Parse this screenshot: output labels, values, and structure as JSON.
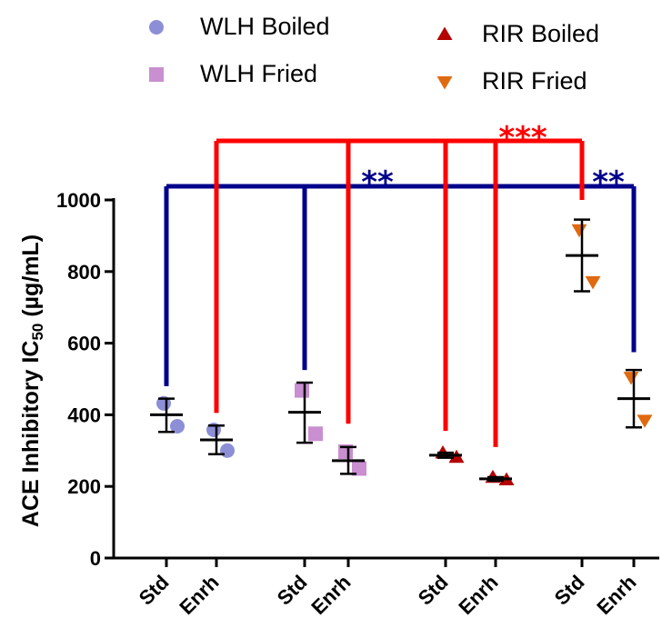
{
  "chart_data": {
    "type": "scatter",
    "ylabel_main": "ACE Inhibitory IC",
    "ylabel_sub": "50",
    "ylabel_unit": " (µg/mL)",
    "ylim": [
      0,
      1000
    ],
    "yticks": [
      0,
      200,
      400,
      600,
      800,
      1000
    ],
    "categories": [
      "Std",
      "Enrh",
      "Std",
      "Enrh",
      "Std",
      "Enrh",
      "Std",
      "Enrh"
    ],
    "legend_placement": "top",
    "series": [
      {
        "name": "WLH Boiled",
        "marker": "circle",
        "color": "#8C8FD6",
        "groups": [
          {
            "category_index": 0,
            "points": [
              432,
              368
            ],
            "mean": 400,
            "err_low": 352,
            "err_high": 445
          },
          {
            "category_index": 1,
            "points": [
              358,
              300
            ],
            "mean": 330,
            "err_low": 290,
            "err_high": 370
          }
        ]
      },
      {
        "name": "WLH Fried",
        "marker": "square",
        "color": "#C98FD0",
        "groups": [
          {
            "category_index": 2,
            "points": [
              468,
              347
            ],
            "mean": 407,
            "err_low": 322,
            "err_high": 490
          },
          {
            "category_index": 3,
            "points": [
              297,
              250
            ],
            "mean": 272,
            "err_low": 235,
            "err_high": 310
          }
        ]
      },
      {
        "name": "RIR Boiled",
        "marker": "triangle-up",
        "color": "#B30000",
        "groups": [
          {
            "category_index": 4,
            "points": [
              293,
              281
            ],
            "mean": 287,
            "err_low": 280,
            "err_high": 294
          },
          {
            "category_index": 5,
            "points": [
              225,
              218
            ],
            "mean": 221,
            "err_low": 216,
            "err_high": 226
          }
        ]
      },
      {
        "name": "RIR Fried",
        "marker": "triangle-down",
        "color": "#E06A10",
        "groups": [
          {
            "category_index": 6,
            "points": [
              917,
              772
            ],
            "mean": 845,
            "err_low": 745,
            "err_high": 945
          },
          {
            "category_index": 7,
            "points": [
              505,
              385
            ],
            "mean": 445,
            "err_low": 365,
            "err_high": 525
          }
        ]
      }
    ],
    "significance": [
      {
        "label": "**",
        "color": "#00008B",
        "from_category_index": 0,
        "to_category_indices": [
          2,
          6
        ],
        "drop_value": 480,
        "drop_values": [
          525,
          1000
        ]
      },
      {
        "label": "**",
        "color": "#00008B",
        "from_category_index": 6,
        "to_category_indices": [
          7
        ],
        "drop_value": 1000,
        "drop_values": [
          575
        ]
      },
      {
        "label": "***",
        "color": "#FF0000",
        "from_category_index": 1,
        "to_category_indices": [
          3,
          4,
          5,
          6
        ],
        "drop_value": 405,
        "drop_values": [
          375,
          355,
          310,
          1000
        ]
      }
    ]
  }
}
